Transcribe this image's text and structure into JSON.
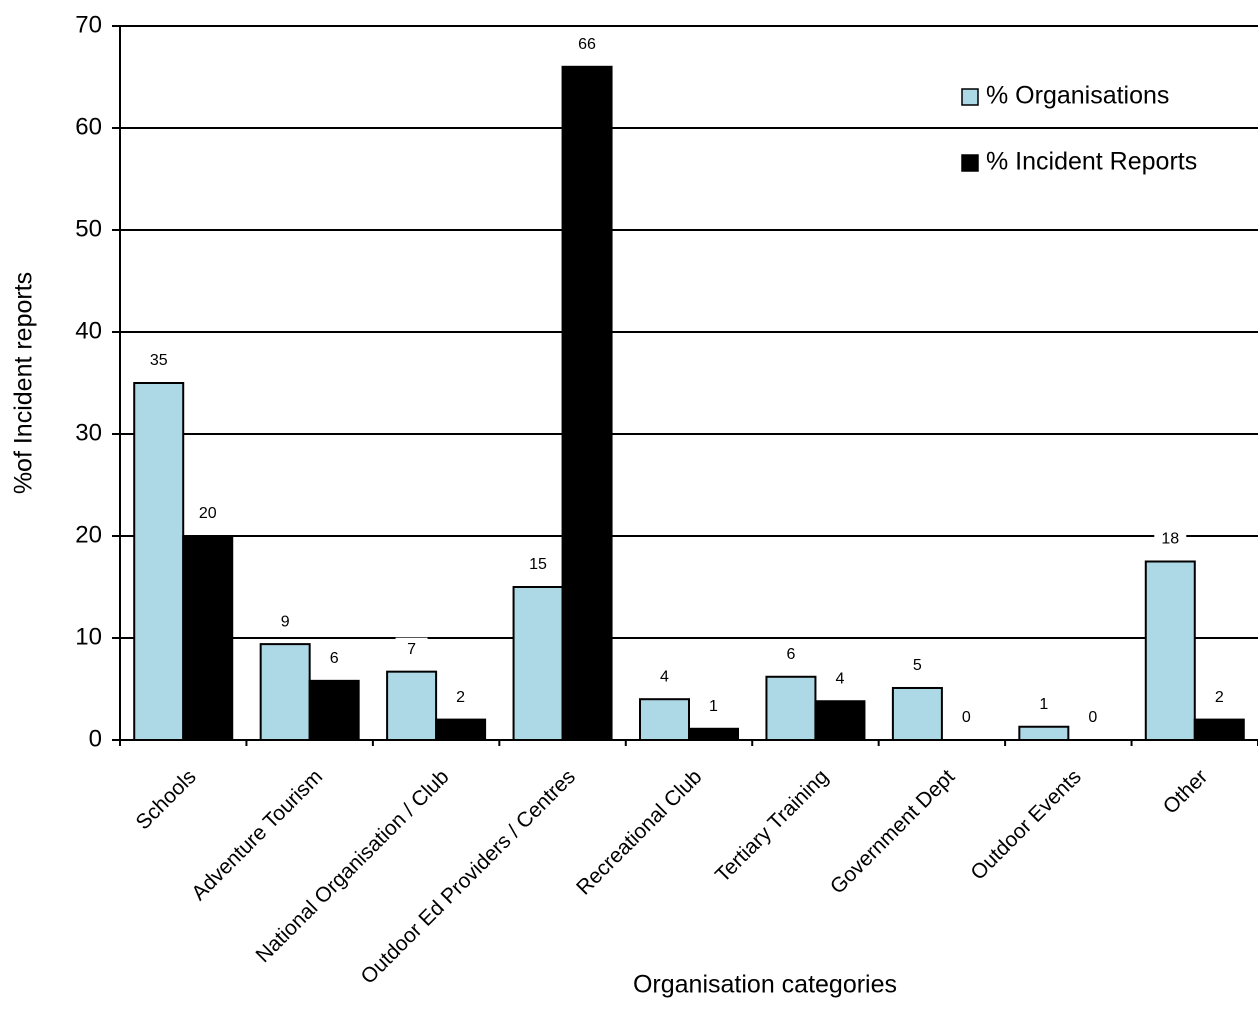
{
  "chart_data": {
    "type": "bar",
    "x_label": "Organisation categories",
    "y_label": "%of Incident reports",
    "categories": [
      "Schools",
      "Adventure Tourism",
      "National Organisation / Club",
      "Outdoor Ed Providers / Centres",
      "Recreational Club",
      "Tertiary Training",
      "Government Dept",
      "Outdoor Events",
      "Other"
    ],
    "series": [
      {
        "name": "% Organisations",
        "color": "#add8e6",
        "values": [
          35,
          9.4,
          6.7,
          15,
          4,
          6.2,
          5.1,
          1.3,
          17.5
        ],
        "value_labels": [
          "35",
          "9",
          "7",
          "15",
          "4",
          "6",
          "5",
          "1",
          "18"
        ]
      },
      {
        "name": "% Incident Reports",
        "color": "#000000",
        "values": [
          20,
          5.8,
          2,
          66,
          1.1,
          3.8,
          0,
          0,
          2
        ],
        "value_labels": [
          "20",
          "6",
          "2",
          "66",
          "1",
          "4",
          "0",
          "0",
          "2"
        ]
      }
    ],
    "ylim": [
      0,
      70
    ],
    "yticks": [
      0,
      10,
      20,
      30,
      40,
      50,
      60,
      70
    ],
    "grid": true,
    "legend": "upper right"
  }
}
